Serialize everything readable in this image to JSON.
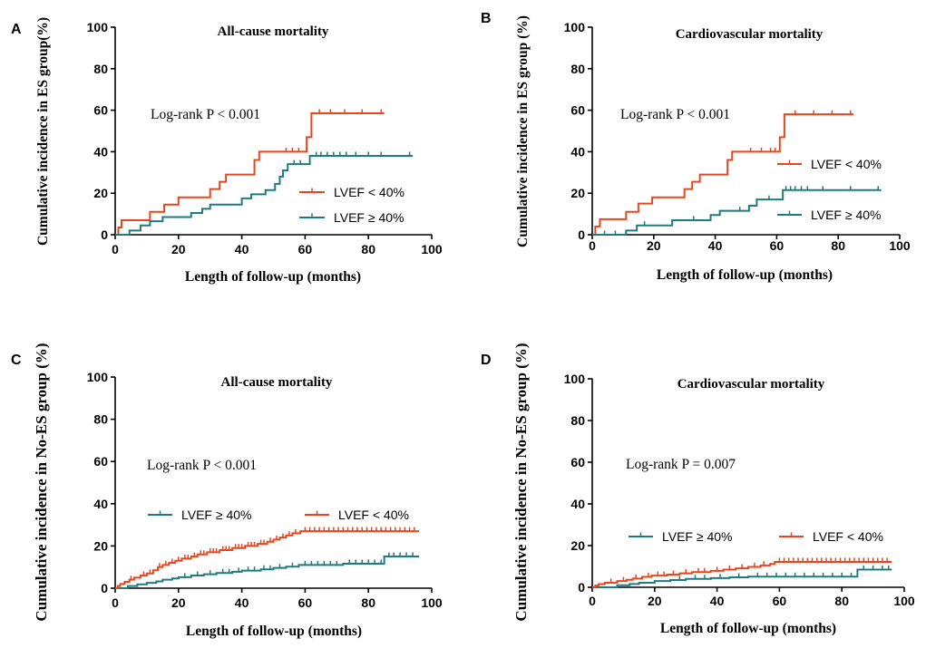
{
  "chart_data": [
    {
      "panel_label": "A",
      "type": "line",
      "title": "All-cause mortality",
      "xlabel": "Length of follow-up (months)",
      "ylabel": "Cumulative incidence in ES group(%)",
      "xlim": [
        0,
        100
      ],
      "ylim": [
        0,
        100
      ],
      "xticks": [
        0,
        20,
        40,
        60,
        80,
        100
      ],
      "yticks": [
        0,
        20,
        40,
        60,
        80,
        100
      ],
      "grid": false,
      "legend_position": "right",
      "annotation": "Log-rank P < 0.001",
      "series": [
        {
          "name": "LVEF < 40%",
          "color": "#e8461e",
          "steps": [
            [
              0,
              0
            ],
            [
              1,
              3.5
            ],
            [
              2,
              7
            ],
            [
              11,
              11
            ],
            [
              15.5,
              14.5
            ],
            [
              20,
              18
            ],
            [
              30,
              22
            ],
            [
              33,
              25.5
            ],
            [
              35,
              29
            ],
            [
              44,
              36
            ],
            [
              45.5,
              40
            ],
            [
              60.5,
              47
            ],
            [
              62,
              58.5
            ]
          ],
          "end": 85,
          "censored": [
            54,
            56,
            58,
            64.5,
            68,
            72.5,
            78,
            84
          ]
        },
        {
          "name": "LVEF ≥ 40%",
          "color": "#1e7b7e",
          "steps": [
            [
              0,
              0
            ],
            [
              4.5,
              2
            ],
            [
              8,
              4.5
            ],
            [
              11,
              6.5
            ],
            [
              15,
              8.5
            ],
            [
              24,
              10.5
            ],
            [
              27.5,
              12.5
            ],
            [
              30,
              14.5
            ],
            [
              40,
              17.5
            ],
            [
              43,
              19.5
            ],
            [
              47.5,
              21.5
            ],
            [
              50.5,
              24.5
            ],
            [
              52,
              28
            ],
            [
              53,
              31
            ],
            [
              54.5,
              34
            ],
            [
              61.5,
              38
            ]
          ],
          "end": 94,
          "censored": [
            56.5,
            58.5,
            63.5,
            65,
            67,
            69,
            71,
            73,
            76,
            80,
            84,
            93
          ]
        }
      ]
    },
    {
      "panel_label": "B",
      "type": "line",
      "title": "Cardiovascular mortality",
      "xlabel": "Length of follow-up (months)",
      "ylabel": "Cumulative incidence in ES group (%)",
      "xlim": [
        0,
        100
      ],
      "ylim": [
        0,
        100
      ],
      "xticks": [
        0,
        20,
        40,
        60,
        80,
        100
      ],
      "yticks": [
        0,
        20,
        40,
        60,
        80,
        100
      ],
      "grid": false,
      "legend_position": "right",
      "annotation": "Log-rank P < 0.001",
      "series": [
        {
          "name": "LVEF < 40%",
          "color": "#e8461e",
          "steps": [
            [
              0,
              0
            ],
            [
              1,
              4
            ],
            [
              2.5,
              7.5
            ],
            [
              11,
              11
            ],
            [
              15,
              15
            ],
            [
              19.5,
              18
            ],
            [
              30,
              22
            ],
            [
              32.5,
              25.5
            ],
            [
              35,
              29
            ],
            [
              44,
              36
            ],
            [
              45.5,
              40
            ],
            [
              61,
              47
            ],
            [
              62.5,
              58
            ]
          ],
          "end": 85,
          "censored": [
            51.5,
            55,
            58,
            59.5,
            66,
            72,
            78,
            84
          ]
        },
        {
          "name": "LVEF ≥ 40%",
          "color": "#1e7b7e",
          "steps": [
            [
              0,
              0
            ],
            [
              11,
              2
            ],
            [
              14.5,
              4.5
            ],
            [
              26,
              7
            ],
            [
              38.5,
              9.5
            ],
            [
              41.5,
              11.5
            ],
            [
              51,
              14
            ],
            [
              53.5,
              17
            ],
            [
              62,
              21.5
            ]
          ],
          "end": 94,
          "censored": [
            4,
            7.5,
            17,
            33,
            48,
            57.5,
            63,
            64.5,
            66,
            68,
            70,
            75,
            84,
            93
          ]
        }
      ]
    },
    {
      "panel_label": "C",
      "type": "line",
      "title": "All-cause mortality",
      "xlabel": "Length of follow-up (months)",
      "ylabel": "Cumulative incidence in No-ES group (%)",
      "xlim": [
        0,
        100
      ],
      "ylim": [
        0,
        100
      ],
      "xticks": [
        0,
        20,
        40,
        60,
        80,
        100
      ],
      "yticks": [
        0,
        20,
        40,
        60,
        80,
        100
      ],
      "grid": false,
      "legend_position": "center",
      "annotation": "Log-rank P < 0.001",
      "series": [
        {
          "name": "LVEF ≥ 40%",
          "color": "#1e7b7e",
          "steps": [
            [
              0,
              0
            ],
            [
              4,
              1
            ],
            [
              7,
              1.8
            ],
            [
              10,
              2.5
            ],
            [
              13,
              3.2
            ],
            [
              15,
              4
            ],
            [
              18,
              4.6
            ],
            [
              20,
              5.2
            ],
            [
              24,
              6
            ],
            [
              28,
              6.6
            ],
            [
              32,
              7.2
            ],
            [
              37,
              7.8
            ],
            [
              40,
              8.3
            ],
            [
              46,
              8.9
            ],
            [
              50,
              9.6
            ],
            [
              54,
              10.2
            ],
            [
              58,
              11
            ],
            [
              72,
              11.6
            ],
            [
              85,
              15
            ]
          ],
          "end": 96,
          "censored": [
            22,
            26,
            30,
            34,
            36,
            39,
            42,
            44,
            47,
            49,
            52,
            56,
            60,
            62,
            64,
            66,
            68,
            70,
            74,
            76,
            78,
            80,
            82,
            84,
            86.5,
            88,
            90,
            92,
            94
          ]
        },
        {
          "name": "LVEF < 40%",
          "color": "#e8461e",
          "steps": [
            [
              0,
              0
            ],
            [
              0.8,
              1
            ],
            [
              1.6,
              2
            ],
            [
              3,
              3
            ],
            [
              4.5,
              4
            ],
            [
              6,
              5
            ],
            [
              8,
              6
            ],
            [
              10,
              7
            ],
            [
              12,
              8.5
            ],
            [
              13.5,
              10
            ],
            [
              15,
              11
            ],
            [
              17,
              12
            ],
            [
              19,
              13
            ],
            [
              21,
              14
            ],
            [
              24,
              15
            ],
            [
              26,
              16
            ],
            [
              29,
              17
            ],
            [
              33,
              18
            ],
            [
              37,
              19
            ],
            [
              41,
              20
            ],
            [
              45,
              21
            ],
            [
              48,
              22
            ],
            [
              50,
              23
            ],
            [
              52,
              24
            ],
            [
              54,
              25
            ],
            [
              56,
              26
            ],
            [
              58.5,
              27
            ]
          ],
          "end": 96,
          "censored": [
            5,
            9,
            11,
            14,
            16,
            18,
            20,
            22,
            23,
            25,
            27,
            28,
            30,
            31,
            32,
            34,
            35,
            36,
            38,
            39,
            40,
            42,
            43,
            44,
            46,
            47,
            49,
            51,
            53,
            55,
            57,
            60,
            61.5,
            63,
            64.5,
            66,
            67.5,
            69,
            70.5,
            72,
            73.5,
            75,
            76.5,
            78,
            79.5,
            81,
            82.5,
            84,
            85.5,
            87,
            88.5,
            90,
            91.5,
            93,
            94.5
          ]
        }
      ]
    },
    {
      "panel_label": "D",
      "type": "line",
      "title": "Cardiovascular mortality",
      "xlabel": "Length of follow-up (months)",
      "ylabel": "Cumulative incidence in No-ES group (%)",
      "xlim": [
        0,
        100
      ],
      "ylim": [
        0,
        100
      ],
      "xticks": [
        0,
        20,
        40,
        60,
        80,
        100
      ],
      "yticks": [
        0,
        20,
        40,
        60,
        80,
        100
      ],
      "grid": false,
      "legend_position": "bottom",
      "annotation": "Log-rank P = 0.007",
      "series": [
        {
          "name": "LVEF ≥ 40%",
          "color": "#1e7b7e",
          "steps": [
            [
              0,
              0
            ],
            [
              8,
              1
            ],
            [
              12,
              1.6
            ],
            [
              15,
              2.2
            ],
            [
              20,
              3
            ],
            [
              25,
              3.5
            ],
            [
              30,
              4
            ],
            [
              38,
              4.4
            ],
            [
              44,
              4.8
            ],
            [
              50,
              5.1
            ],
            [
              85,
              8.5
            ]
          ],
          "end": 96,
          "censored": [
            28,
            33,
            36,
            41,
            47,
            53,
            56,
            59,
            62,
            65,
            68,
            71,
            74,
            77,
            80,
            83,
            87,
            90,
            93,
            95
          ]
        },
        {
          "name": "LVEF < 40%",
          "color": "#e8461e",
          "steps": [
            [
              0,
              0
            ],
            [
              1,
              0.8
            ],
            [
              2,
              1.5
            ],
            [
              4,
              2.2
            ],
            [
              8,
              3
            ],
            [
              11,
              3.6
            ],
            [
              13,
              4.2
            ],
            [
              16,
              5
            ],
            [
              19,
              5.6
            ],
            [
              24,
              6.1
            ],
            [
              28,
              6.7
            ],
            [
              32,
              7.3
            ],
            [
              38,
              7.9
            ],
            [
              42,
              8.5
            ],
            [
              46,
              9.1
            ],
            [
              50,
              9.8
            ],
            [
              54,
              10.5
            ],
            [
              57,
              11.2
            ],
            [
              58.5,
              12.2
            ]
          ],
          "end": 96,
          "censored": [
            6,
            10,
            14,
            18,
            21,
            23,
            26,
            30,
            34,
            36,
            40,
            44,
            48,
            52,
            55,
            60,
            61.5,
            63,
            64.5,
            66,
            67.5,
            69,
            70.5,
            72,
            73.5,
            75,
            76.5,
            78,
            79.5,
            81,
            82.5,
            84,
            85.5,
            87,
            88.5,
            90,
            91.5,
            93,
            94.5
          ]
        }
      ]
    }
  ]
}
